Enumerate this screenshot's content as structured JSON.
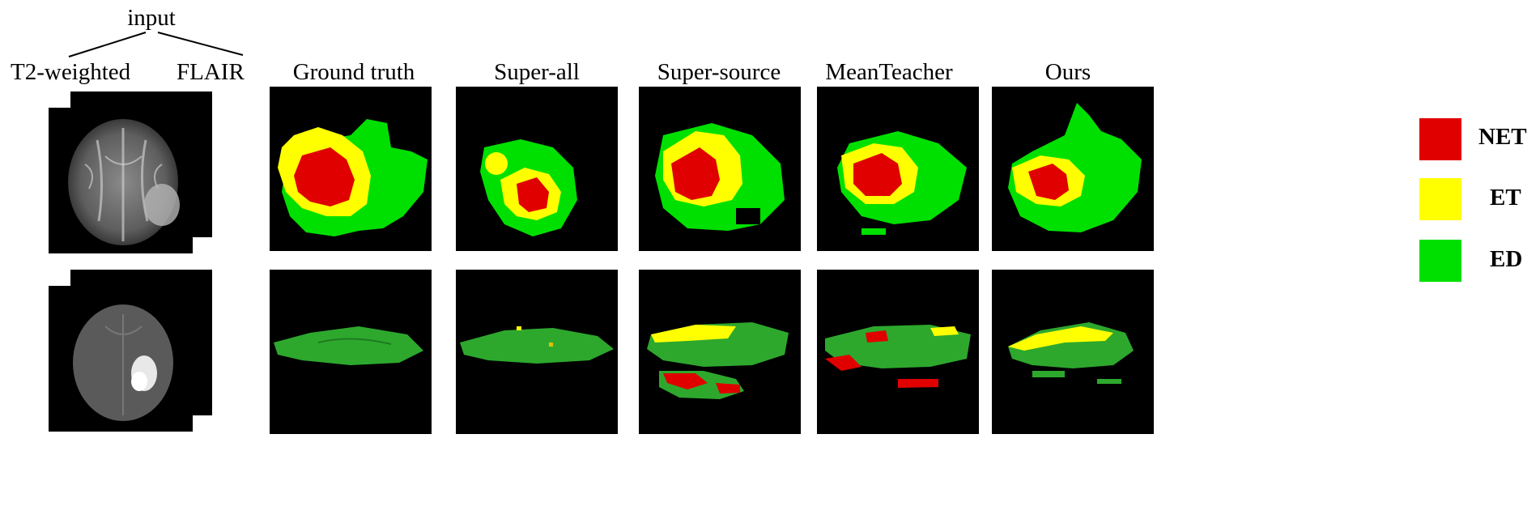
{
  "input": {
    "title": "input",
    "left_label": "T2-weighted",
    "right_label": "FLAIR"
  },
  "columns": [
    {
      "label": "Ground truth"
    },
    {
      "label": "Super-all"
    },
    {
      "label": "Super-source"
    },
    {
      "label": "MeanTeacher"
    },
    {
      "label": "Ours"
    }
  ],
  "legend": [
    {
      "label": "NET",
      "color": "#e00000"
    },
    {
      "label": "ET",
      "color": "#ffff00"
    },
    {
      "label": "ED",
      "color": "#00e000"
    }
  ],
  "colors": {
    "background": "#000000",
    "net": "#e00000",
    "et": "#ffff00",
    "ed": "#00e000",
    "ed_3d": "#2da82d"
  }
}
